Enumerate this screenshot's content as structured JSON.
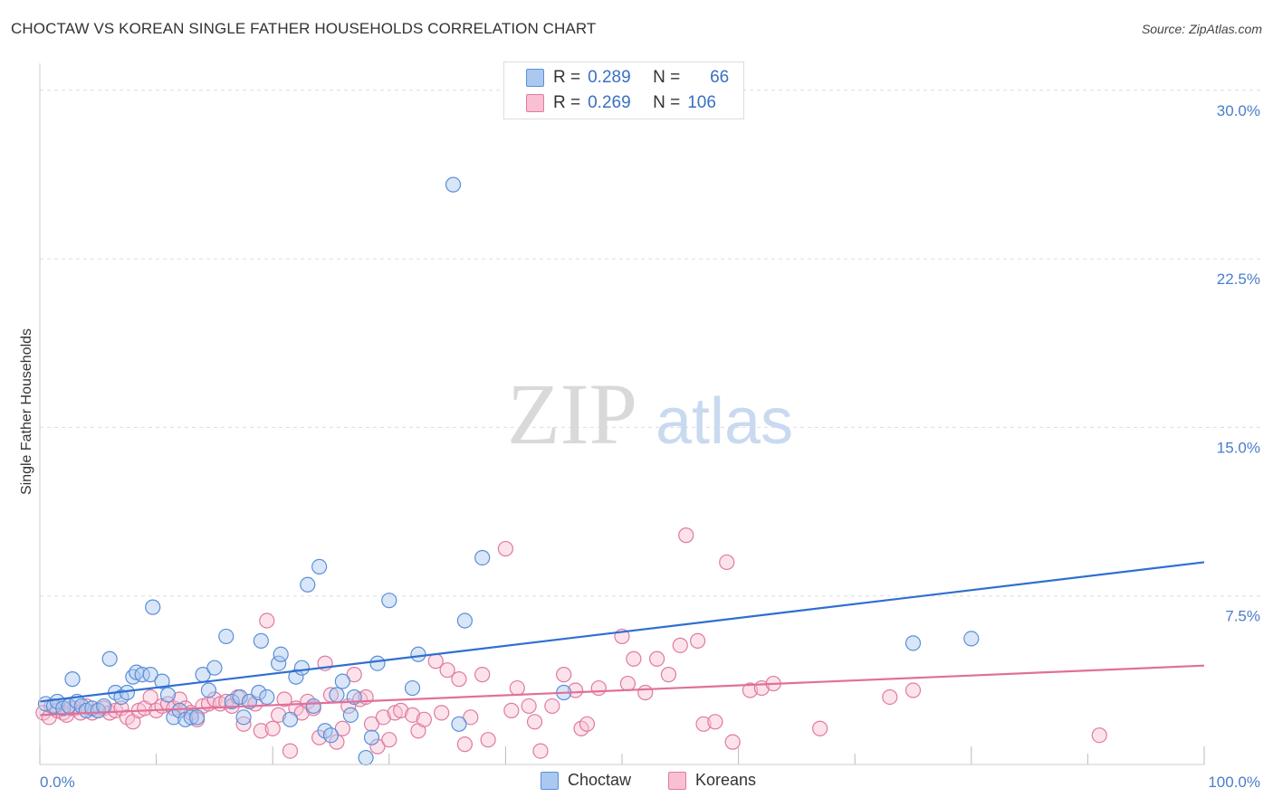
{
  "header": {
    "title": "CHOCTAW VS KOREAN SINGLE FATHER HOUSEHOLDS CORRELATION CHART",
    "source": "Source: ZipAtlas.com"
  },
  "watermark": {
    "zip": "ZIP",
    "atlas": "atlas"
  },
  "legend": {
    "rows": [
      {
        "r_label": "R =",
        "r_value": "0.289",
        "n_label": "N =",
        "n_value": "66",
        "color": "#aac8f0",
        "border": "#5a8fd8"
      },
      {
        "r_label": "R =",
        "r_value": "0.269",
        "n_label": "N =",
        "n_value": "106",
        "color": "#f8c0d2",
        "border": "#e07aa0"
      }
    ]
  },
  "bottom_legend": {
    "choctaw": "Choctaw",
    "koreans": "Koreans"
  },
  "chart_data": {
    "type": "scatter",
    "title": "CHOCTAW VS KOREAN SINGLE FATHER HOUSEHOLDS CORRELATION CHART",
    "xlabel": "",
    "ylabel": "Single Father Households",
    "xlim": [
      0,
      100
    ],
    "ylim": [
      0,
      31.2
    ],
    "y_ticks": [
      {
        "value": 7.5,
        "label": "7.5%"
      },
      {
        "value": 15.0,
        "label": "15.0%"
      },
      {
        "value": 22.5,
        "label": "22.5%"
      },
      {
        "value": 30.0,
        "label": "30.0%"
      }
    ],
    "x_tick_labels": {
      "min": "0.0%",
      "max": "100.0%"
    },
    "grid": true,
    "legend_position": "top-center",
    "series": [
      {
        "name": "Choctaw",
        "color": "#5a8fd8",
        "fill": "#aac8f0",
        "trend": {
          "x": [
            0,
            100
          ],
          "y": [
            2.8,
            9.0
          ],
          "color": "#2f6fd0"
        },
        "points": [
          [
            0.5,
            2.7
          ],
          [
            1.2,
            2.6
          ],
          [
            1.5,
            2.8
          ],
          [
            2.0,
            2.5
          ],
          [
            2.5,
            2.6
          ],
          [
            2.8,
            3.8
          ],
          [
            3.2,
            2.8
          ],
          [
            3.6,
            2.6
          ],
          [
            4.0,
            2.4
          ],
          [
            4.5,
            2.5
          ],
          [
            5.0,
            2.4
          ],
          [
            5.5,
            2.6
          ],
          [
            6.0,
            4.7
          ],
          [
            6.5,
            3.2
          ],
          [
            7.0,
            3.0
          ],
          [
            7.5,
            3.2
          ],
          [
            8.0,
            3.9
          ],
          [
            8.3,
            4.1
          ],
          [
            8.8,
            4.0
          ],
          [
            9.5,
            4.0
          ],
          [
            9.7,
            7.0
          ],
          [
            10.5,
            3.7
          ],
          [
            11.0,
            3.1
          ],
          [
            11.5,
            2.1
          ],
          [
            12.0,
            2.4
          ],
          [
            12.5,
            2.0
          ],
          [
            13.0,
            2.1
          ],
          [
            13.5,
            2.1
          ],
          [
            14.0,
            4.0
          ],
          [
            14.5,
            3.3
          ],
          [
            15.0,
            4.3
          ],
          [
            16.0,
            5.7
          ],
          [
            16.5,
            2.8
          ],
          [
            17.2,
            3.0
          ],
          [
            17.5,
            2.1
          ],
          [
            18.0,
            2.8
          ],
          [
            18.8,
            3.2
          ],
          [
            19.0,
            5.5
          ],
          [
            19.5,
            3.0
          ],
          [
            20.5,
            4.5
          ],
          [
            20.7,
            4.9
          ],
          [
            21.5,
            2.0
          ],
          [
            22.0,
            3.9
          ],
          [
            22.5,
            4.3
          ],
          [
            23.0,
            8.0
          ],
          [
            23.5,
            2.6
          ],
          [
            24.0,
            8.8
          ],
          [
            24.5,
            1.5
          ],
          [
            25.0,
            1.3
          ],
          [
            25.5,
            3.1
          ],
          [
            26.0,
            3.7
          ],
          [
            26.7,
            2.2
          ],
          [
            27.0,
            3.0
          ],
          [
            28.0,
            0.3
          ],
          [
            28.5,
            1.2
          ],
          [
            29.0,
            4.5
          ],
          [
            30.0,
            7.3
          ],
          [
            32.0,
            3.4
          ],
          [
            32.5,
            4.9
          ],
          [
            35.5,
            25.8
          ],
          [
            36.0,
            1.8
          ],
          [
            36.5,
            6.4
          ],
          [
            38.0,
            9.2
          ],
          [
            45.0,
            3.2
          ],
          [
            75.0,
            5.4
          ],
          [
            80.0,
            5.6
          ]
        ]
      },
      {
        "name": "Koreans",
        "color": "#e07aa0",
        "fill": "#f8c0d2",
        "trend": {
          "x": [
            0,
            100
          ],
          "y": [
            2.2,
            4.4
          ],
          "color": "#e0709a"
        },
        "points": [
          [
            0.3,
            2.3
          ],
          [
            0.8,
            2.1
          ],
          [
            1.0,
            2.6
          ],
          [
            1.5,
            2.4
          ],
          [
            2.0,
            2.3
          ],
          [
            2.3,
            2.2
          ],
          [
            2.7,
            2.5
          ],
          [
            3.0,
            2.5
          ],
          [
            3.5,
            2.3
          ],
          [
            4.0,
            2.6
          ],
          [
            4.5,
            2.3
          ],
          [
            5.0,
            2.4
          ],
          [
            5.5,
            2.5
          ],
          [
            6.0,
            2.3
          ],
          [
            6.5,
            2.4
          ],
          [
            7.0,
            2.5
          ],
          [
            7.5,
            2.1
          ],
          [
            8.0,
            1.9
          ],
          [
            8.5,
            2.4
          ],
          [
            9.0,
            2.5
          ],
          [
            9.5,
            3.0
          ],
          [
            10.0,
            2.4
          ],
          [
            10.5,
            2.6
          ],
          [
            11.0,
            2.7
          ],
          [
            11.5,
            2.5
          ],
          [
            12.0,
            2.9
          ],
          [
            12.5,
            2.5
          ],
          [
            13.0,
            2.3
          ],
          [
            13.5,
            2.0
          ],
          [
            14.0,
            2.6
          ],
          [
            14.5,
            2.7
          ],
          [
            15.0,
            2.9
          ],
          [
            15.5,
            2.7
          ],
          [
            16.0,
            2.8
          ],
          [
            16.5,
            2.6
          ],
          [
            17.0,
            3.0
          ],
          [
            17.5,
            1.8
          ],
          [
            18.0,
            2.8
          ],
          [
            18.5,
            2.7
          ],
          [
            19.0,
            1.5
          ],
          [
            19.5,
            6.4
          ],
          [
            20.0,
            1.6
          ],
          [
            20.5,
            2.2
          ],
          [
            21.0,
            2.9
          ],
          [
            21.5,
            0.6
          ],
          [
            22.0,
            2.5
          ],
          [
            22.5,
            2.3
          ],
          [
            23.0,
            2.8
          ],
          [
            23.5,
            2.5
          ],
          [
            24.0,
            1.2
          ],
          [
            24.5,
            4.5
          ],
          [
            25.0,
            3.1
          ],
          [
            25.5,
            1.0
          ],
          [
            26.0,
            1.6
          ],
          [
            26.5,
            2.6
          ],
          [
            27.0,
            4.0
          ],
          [
            27.5,
            2.9
          ],
          [
            28.0,
            3.0
          ],
          [
            28.5,
            1.8
          ],
          [
            29.0,
            0.8
          ],
          [
            29.5,
            2.1
          ],
          [
            30.0,
            1.1
          ],
          [
            30.5,
            2.3
          ],
          [
            31.0,
            2.4
          ],
          [
            32.0,
            2.2
          ],
          [
            32.5,
            1.5
          ],
          [
            33.0,
            2.0
          ],
          [
            34.0,
            4.6
          ],
          [
            34.5,
            2.3
          ],
          [
            35.0,
            4.2
          ],
          [
            36.0,
            3.8
          ],
          [
            36.5,
            0.9
          ],
          [
            37.0,
            2.1
          ],
          [
            38.0,
            4.0
          ],
          [
            38.5,
            1.1
          ],
          [
            40.0,
            9.6
          ],
          [
            40.5,
            2.4
          ],
          [
            41.0,
            3.4
          ],
          [
            42.0,
            2.6
          ],
          [
            42.5,
            1.9
          ],
          [
            43.0,
            0.6
          ],
          [
            44.0,
            2.6
          ],
          [
            45.0,
            4.0
          ],
          [
            46.0,
            3.3
          ],
          [
            46.5,
            1.6
          ],
          [
            47.0,
            1.8
          ],
          [
            48.0,
            3.4
          ],
          [
            50.0,
            5.7
          ],
          [
            50.5,
            3.6
          ],
          [
            51.0,
            4.7
          ],
          [
            52.0,
            3.2
          ],
          [
            53.0,
            4.7
          ],
          [
            54.0,
            4.0
          ],
          [
            55.0,
            5.3
          ],
          [
            55.5,
            10.2
          ],
          [
            56.5,
            5.5
          ],
          [
            57.0,
            1.8
          ],
          [
            58.0,
            1.9
          ],
          [
            59.0,
            9.0
          ],
          [
            59.5,
            1.0
          ],
          [
            61.0,
            3.3
          ],
          [
            62.0,
            3.4
          ],
          [
            63.0,
            3.6
          ],
          [
            67.0,
            1.6
          ],
          [
            73.0,
            3.0
          ],
          [
            75.0,
            3.3
          ],
          [
            91.0,
            1.3
          ]
        ]
      }
    ]
  }
}
